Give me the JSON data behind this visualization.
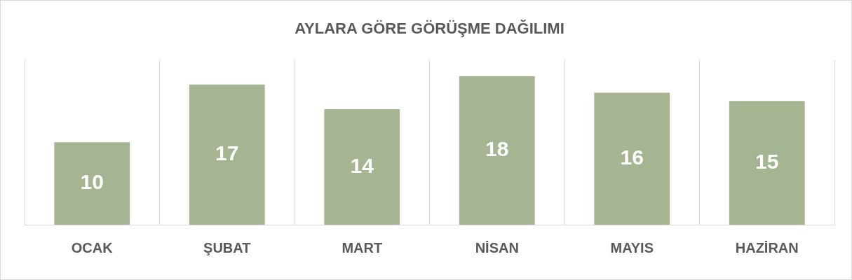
{
  "chart_data": {
    "type": "bar",
    "title": "AYLARA GÖRE GÖRÜŞME DAĞILIMI",
    "categories": [
      "OCAK",
      "ŞUBAT",
      "MART",
      "NİSAN",
      "MAYIS",
      "HAZİRAN"
    ],
    "values": [
      10,
      17,
      14,
      18,
      16,
      15
    ],
    "color": "#a5b592",
    "ylim": [
      0,
      20
    ],
    "data_labels": true,
    "grid": "x"
  }
}
